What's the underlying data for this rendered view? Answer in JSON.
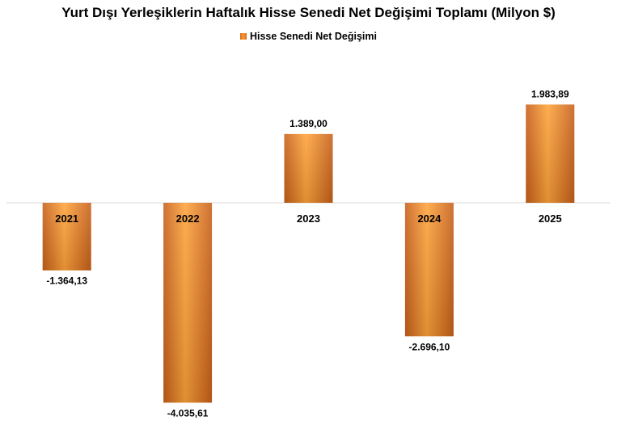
{
  "chart_data": {
    "type": "bar",
    "title": "Yurt Dışı Yerleşiklerin Haftalık Hisse Senedi Net Değişimi Toplamı (Milyon $)",
    "legend": "Hisse Senedi Net Değişimi",
    "legend_position": "top",
    "categories": [
      "2021",
      "2022",
      "2023",
      "2024",
      "2025"
    ],
    "series": [
      {
        "name": "Hisse Senedi Net Değişimi",
        "values": [
          -1364.13,
          -4035.61,
          1389.0,
          -2696.1,
          1983.89
        ],
        "labels": [
          "-1.364,13",
          "-4.035,61",
          "1.389,00",
          "-2.696,10",
          "1.983,89"
        ]
      }
    ],
    "grid": false,
    "colors": {
      "bar_dark": "#d2691e",
      "bar_light": "#ffa33a",
      "axis": "#d9d9d9"
    }
  }
}
